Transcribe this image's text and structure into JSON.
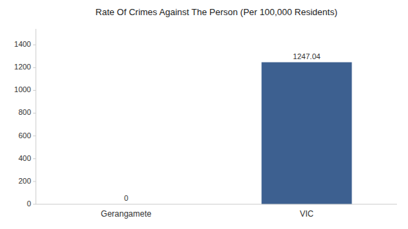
{
  "chart_data": {
    "type": "bar",
    "title": "Rate Of Crimes Against The Person (Per 100,000 Residents)",
    "categories": [
      "Gerangamete",
      "VIC"
    ],
    "values": [
      0,
      1247.04
    ],
    "color": "#3d6090",
    "ylim": [
      0,
      1540
    ],
    "yticks": [
      0,
      200,
      400,
      600,
      800,
      1000,
      1200,
      1400
    ],
    "grid": false,
    "data_labels": true
  }
}
